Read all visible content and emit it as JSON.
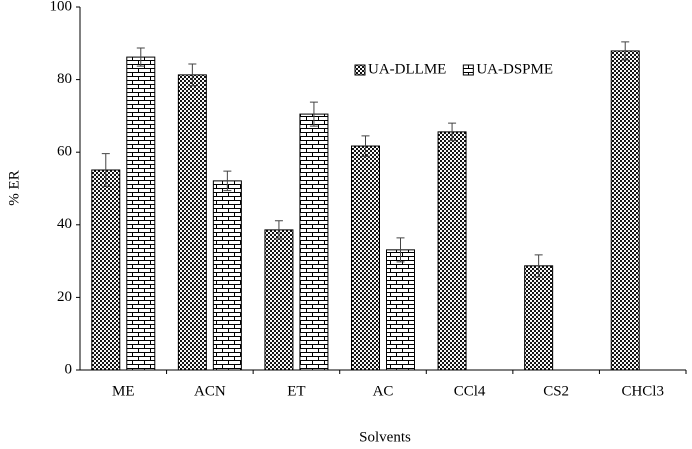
{
  "chart_data": {
    "type": "bar",
    "x_label": "Solvents",
    "y_label": "% ER",
    "categories": [
      "ME",
      "ACN",
      "ET",
      "AC",
      "CCl4",
      "CS2",
      "CHCl3"
    ],
    "series": [
      {
        "name": "UA-DLLME",
        "color": "#000000",
        "pattern": "dots",
        "values": [
          55.1,
          81.3,
          38.6,
          61.7,
          65.6,
          28.7,
          87.9
        ],
        "errors": [
          4.5,
          3,
          2.5,
          2.8,
          2.4,
          3,
          2.5
        ]
      },
      {
        "name": "UA-DSPME",
        "color": "#000000",
        "pattern": "bricks",
        "values": [
          86.2,
          52.1,
          70.5,
          33.1,
          null,
          null,
          null
        ],
        "errors": [
          2.5,
          2.7,
          3.3,
          3.3,
          null,
          null,
          null
        ]
      }
    ],
    "ylim": [
      0,
      100
    ],
    "yticks": [
      0,
      20,
      40,
      60,
      80,
      100
    ],
    "grid": false,
    "legend": "top-center"
  }
}
